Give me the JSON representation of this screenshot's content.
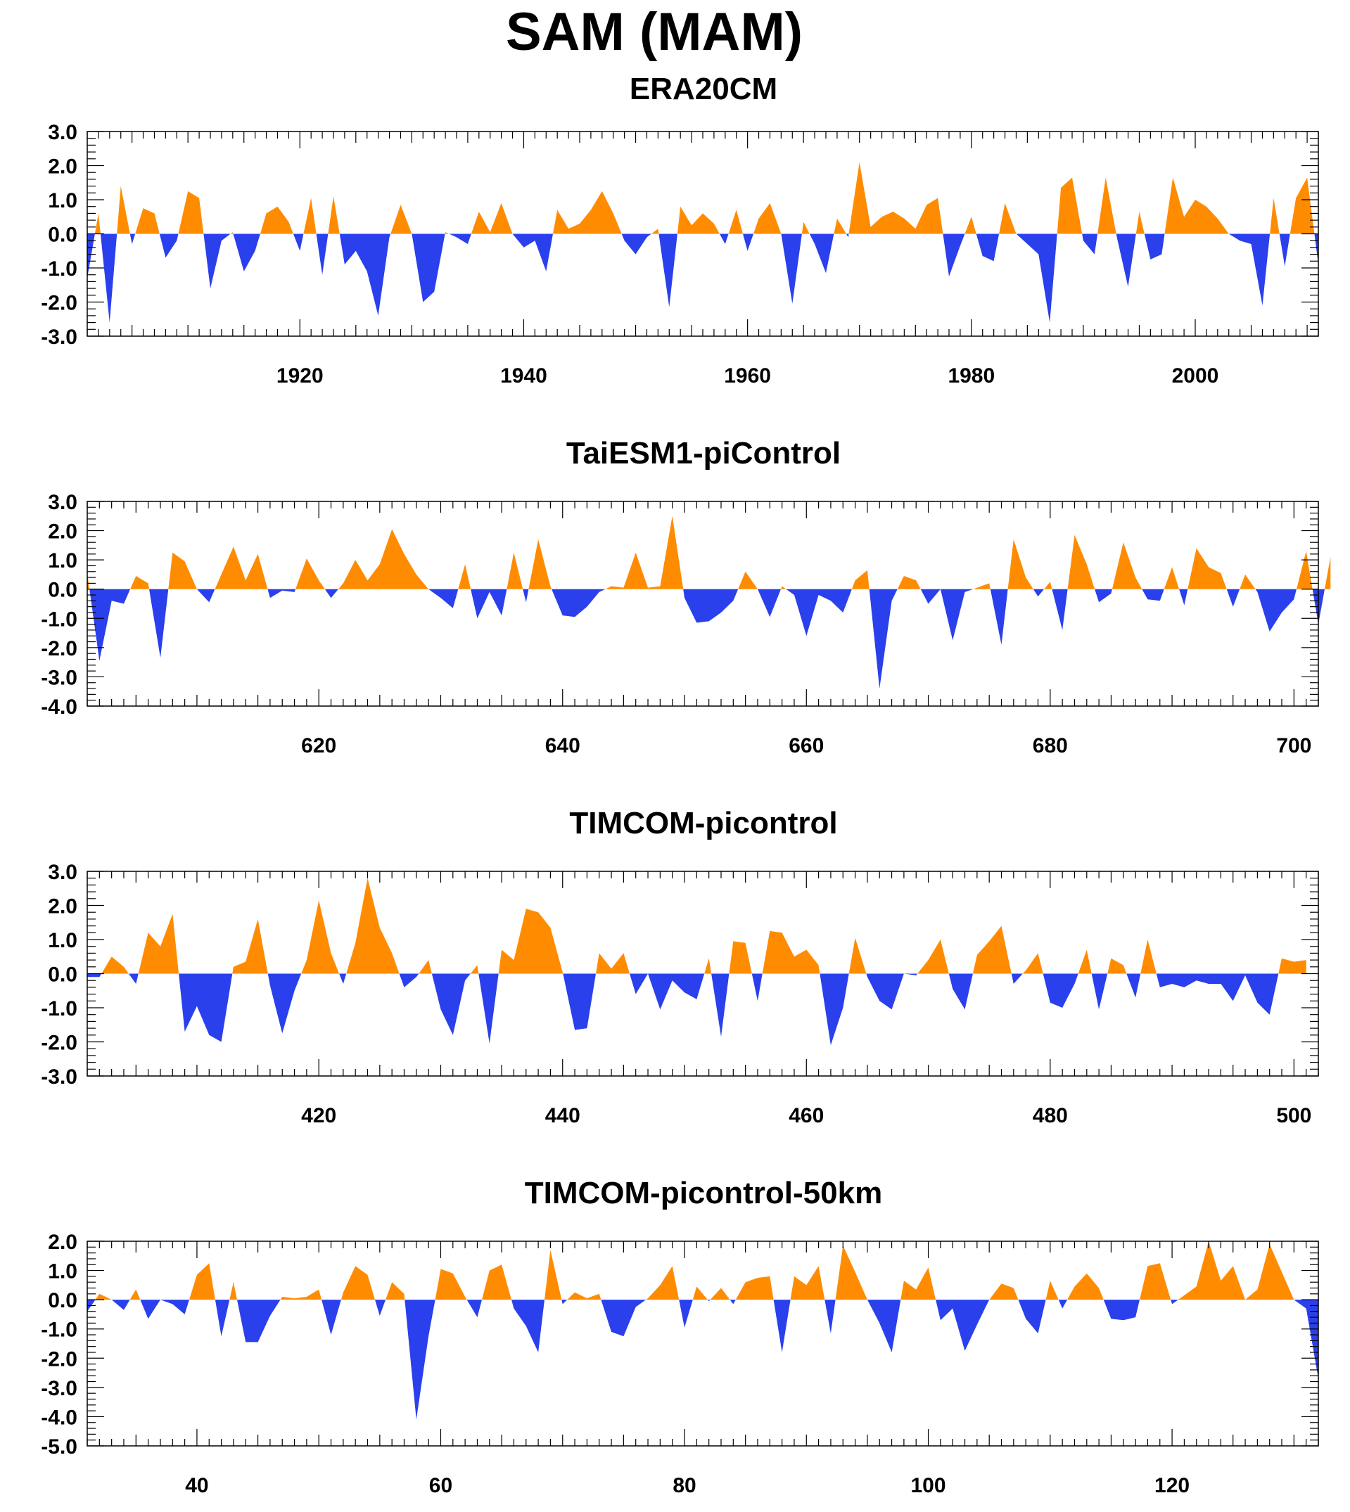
{
  "title": "SAM (MAM)",
  "colors": {
    "positive": "#ff8c00",
    "negative": "#2a40ec",
    "frame": "#000000"
  },
  "chart_data": [
    {
      "type": "area",
      "title": "ERA20CM",
      "xlim": [
        1901,
        2011
      ],
      "ylim": [
        -3,
        3
      ],
      "yticks": [
        3.0,
        2.0,
        1.0,
        0.0,
        -1.0,
        -2.0,
        -3.0
      ],
      "xticks": [
        1920,
        1940,
        1960,
        1980,
        2000
      ],
      "x_start": 1901,
      "values": [
        -1.3,
        0.6,
        -2.6,
        1.4,
        -0.3,
        0.75,
        0.6,
        -0.7,
        -0.2,
        1.25,
        1.05,
        -1.6,
        -0.2,
        0.05,
        -1.1,
        -0.5,
        0.6,
        0.8,
        0.35,
        -0.5,
        1.05,
        -1.2,
        1.1,
        -0.9,
        -0.5,
        -1.1,
        -2.4,
        -0.1,
        0.85,
        0.0,
        -2.0,
        -1.7,
        0.05,
        -0.1,
        -0.3,
        0.65,
        0.05,
        0.9,
        0.0,
        -0.4,
        -0.2,
        -1.1,
        0.7,
        0.15,
        0.3,
        0.7,
        1.25,
        0.6,
        -0.2,
        -0.6,
        -0.1,
        0.15,
        -2.15,
        0.8,
        0.25,
        0.6,
        0.3,
        -0.3,
        0.7,
        -0.5,
        0.45,
        0.9,
        0.0,
        -2.05,
        0.35,
        -0.3,
        -1.15,
        0.45,
        -0.1,
        2.1,
        0.2,
        0.5,
        0.65,
        0.45,
        0.15,
        0.85,
        1.05,
        -1.25,
        -0.35,
        0.5,
        -0.65,
        -0.8,
        0.9,
        0.0,
        -0.3,
        -0.6,
        -2.6,
        1.35,
        1.65,
        -0.2,
        -0.6,
        1.65,
        -0.1,
        -1.55,
        0.65,
        -0.75,
        -0.6,
        1.65,
        0.5,
        1.0,
        0.8,
        0.45,
        0.0,
        -0.2,
        -0.3,
        -2.1,
        1.05,
        -0.95,
        1.05,
        1.65,
        -0.9
      ]
    },
    {
      "type": "area",
      "title": "TaiESM1-piControl",
      "xlim": [
        601,
        702
      ],
      "ylim": [
        -4,
        3
      ],
      "yticks": [
        3.0,
        2.0,
        1.0,
        0.0,
        -1.0,
        -2.0,
        -3.0,
        -4.0
      ],
      "xticks": [
        620,
        640,
        660,
        680,
        700
      ],
      "x_start": 601,
      "values": [
        0.55,
        -2.45,
        -0.4,
        -0.5,
        0.45,
        0.2,
        -2.35,
        1.25,
        0.95,
        0.0,
        -0.45,
        0.5,
        1.45,
        0.3,
        1.2,
        -0.3,
        -0.05,
        -0.1,
        1.05,
        0.3,
        -0.3,
        0.2,
        1.0,
        0.3,
        0.85,
        2.05,
        1.2,
        0.5,
        0.0,
        -0.3,
        -0.65,
        0.85,
        -1.0,
        -0.1,
        -0.9,
        1.25,
        -0.45,
        1.7,
        0.1,
        -0.9,
        -0.95,
        -0.6,
        -0.1,
        0.1,
        0.05,
        1.25,
        0.05,
        0.1,
        2.5,
        -0.3,
        -1.15,
        -1.1,
        -0.8,
        -0.4,
        0.6,
        0.0,
        -0.95,
        0.1,
        -0.2,
        -1.6,
        -0.2,
        -0.4,
        -0.8,
        0.3,
        0.65,
        -3.4,
        -0.4,
        0.45,
        0.3,
        -0.5,
        0.0,
        -1.75,
        -0.1,
        0.05,
        0.2,
        -1.9,
        1.7,
        0.4,
        -0.25,
        0.25,
        -1.4,
        1.85,
        0.85,
        -0.45,
        -0.15,
        1.6,
        0.4,
        -0.35,
        -0.4,
        0.75,
        -0.55,
        1.4,
        0.75,
        0.55,
        -0.6,
        0.5,
        -0.1,
        -1.45,
        -0.8,
        -0.35,
        1.3,
        -1.2,
        1.1
      ]
    },
    {
      "type": "area",
      "title": "TIMCOM-picontrol",
      "xlim": [
        401,
        502
      ],
      "ylim": [
        -3,
        3
      ],
      "yticks": [
        3.0,
        2.0,
        1.0,
        0.0,
        -1.0,
        -2.0,
        -3.0
      ],
      "xticks": [
        420,
        440,
        460,
        480,
        500
      ],
      "x_start": 401,
      "values": [
        -0.1,
        -0.1,
        0.5,
        0.2,
        -0.3,
        1.2,
        0.8,
        1.75,
        -1.7,
        -0.95,
        -1.8,
        -2.0,
        0.2,
        0.35,
        1.6,
        -0.35,
        -1.75,
        -0.5,
        0.4,
        2.15,
        0.6,
        -0.3,
        0.9,
        2.8,
        1.35,
        0.6,
        -0.4,
        -0.1,
        0.4,
        -1.05,
        -1.8,
        -0.2,
        0.25,
        -2.05,
        0.7,
        0.4,
        1.9,
        1.8,
        1.35,
        0.05,
        -1.65,
        -1.6,
        0.6,
        0.15,
        0.6,
        -0.6,
        0.0,
        -1.05,
        -0.2,
        -0.55,
        -0.75,
        0.45,
        -1.85,
        0.95,
        0.9,
        -0.8,
        1.25,
        1.2,
        0.5,
        0.7,
        0.25,
        -2.1,
        -1.0,
        1.05,
        -0.1,
        -0.8,
        -1.05,
        0.0,
        -0.05,
        0.4,
        1.0,
        -0.45,
        -1.05,
        0.55,
        0.95,
        1.4,
        -0.3,
        0.1,
        0.6,
        -0.85,
        -1.0,
        -0.3,
        0.7,
        -1.05,
        0.45,
        0.25,
        -0.7,
        1.0,
        -0.4,
        -0.3,
        -0.4,
        -0.2,
        -0.3,
        -0.3,
        -0.8,
        -0.05,
        -0.85,
        -1.2,
        0.45,
        0.35,
        0.4
      ]
    },
    {
      "type": "area",
      "title": "TIMCOM-picontrol-50km",
      "xlim": [
        31,
        132
      ],
      "ylim": [
        -5,
        2
      ],
      "yticks": [
        2.0,
        1.0,
        0.0,
        -1.0,
        -2.0,
        -3.0,
        -4.0,
        -5.0
      ],
      "xticks": [
        40,
        60,
        80,
        100,
        120
      ],
      "x_start": 31,
      "values": [
        -0.4,
        0.2,
        0.0,
        -0.35,
        0.35,
        -0.65,
        0.0,
        -0.15,
        -0.5,
        0.85,
        1.25,
        -1.25,
        0.6,
        -1.45,
        -1.45,
        -0.55,
        0.1,
        0.05,
        0.1,
        0.35,
        -1.2,
        0.25,
        1.15,
        0.85,
        -0.55,
        0.6,
        0.2,
        -4.1,
        -1.25,
        1.05,
        0.9,
        0.1,
        -0.6,
        1.0,
        1.2,
        -0.3,
        -0.9,
        -1.8,
        1.7,
        -0.15,
        0.25,
        0.05,
        0.2,
        -1.1,
        -1.25,
        -0.25,
        0.05,
        0.5,
        1.15,
        -0.95,
        0.45,
        -0.05,
        0.4,
        -0.15,
        0.6,
        0.75,
        0.8,
        -1.8,
        0.8,
        0.5,
        1.15,
        -1.15,
        1.85,
        0.95,
        0.0,
        -0.8,
        -1.8,
        0.65,
        0.35,
        1.1,
        -0.7,
        -0.3,
        -1.75,
        -0.85,
        0.0,
        0.55,
        0.4,
        -0.65,
        -1.15,
        0.65,
        -0.3,
        0.45,
        0.9,
        0.4,
        -0.65,
        -0.7,
        -0.6,
        1.15,
        1.25,
        -0.15,
        0.15,
        0.45,
        2.0,
        0.65,
        1.15,
        0.0,
        0.35,
        1.9,
        0.95,
        0.0,
        -0.3,
        -2.7
      ]
    }
  ]
}
